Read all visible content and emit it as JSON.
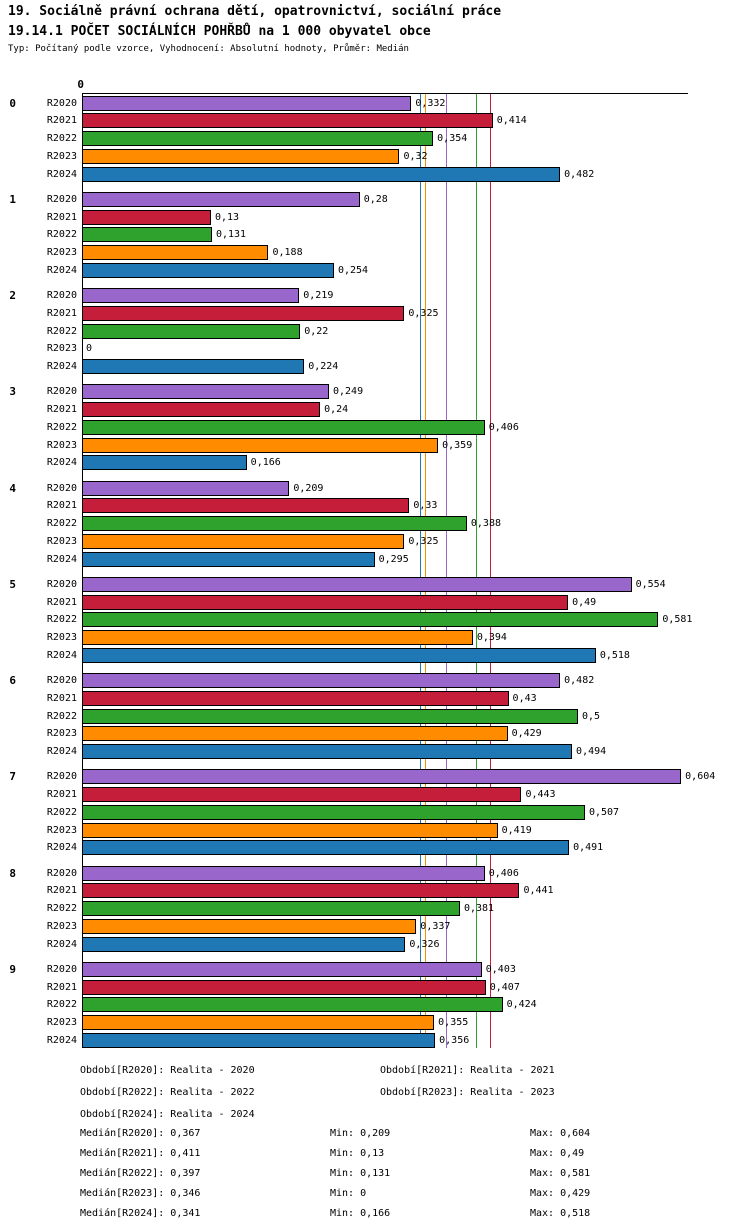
{
  "header": {
    "title_line1": "19. Sociálně právní ochrana dětí, opatrovnictví, sociální práce",
    "title_line2": "19.14.1 POČET SOCIÁLNÍCH POHŘBŮ na 1 000 obyvatel obce",
    "subtitle": "Typ: Počítaný podle vzorce, Vyhodnocení: Absolutní hodnoty, Průměr: Medián"
  },
  "chart_data": {
    "type": "bar",
    "orientation": "horizontal",
    "title": "19.14.1 POČET SOCIÁLNÍCH POHŘBŮ na 1 000 obyvatel obce",
    "xlabel": "",
    "ylabel": "",
    "xlim": [
      0,
      0.611
    ],
    "grid": false,
    "legend_position": "bottom",
    "x_axis": {
      "zero_label": "0"
    },
    "categories": [
      "0",
      "1",
      "2",
      "3",
      "4",
      "5",
      "6",
      "7",
      "8",
      "9"
    ],
    "series": [
      {
        "name": "R2020",
        "color": "#9966CC",
        "median": 0.367,
        "median_label": "0,367",
        "values": [
          0.332,
          0.28,
          0.219,
          0.249,
          0.209,
          0.554,
          0.482,
          0.604,
          0.406,
          0.403
        ],
        "value_labels": [
          "0,332",
          "0,28",
          "0,219",
          "0,249",
          "0,209",
          "0,554",
          "0,482",
          "0,604",
          "0,406",
          "0,403"
        ]
      },
      {
        "name": "R2021",
        "color": "#C41E3A",
        "median": 0.411,
        "median_label": "0,411",
        "values": [
          0.414,
          0.13,
          0.325,
          0.24,
          0.33,
          0.49,
          0.43,
          0.443,
          0.441,
          0.407
        ],
        "value_labels": [
          "0,414",
          "0,13",
          "0,325",
          "0,24",
          "0,33",
          "0,49",
          "0,43",
          "0,443",
          "0,441",
          "0,407"
        ]
      },
      {
        "name": "R2022",
        "color": "#2FA12D",
        "median": 0.397,
        "median_label": "0,397",
        "values": [
          0.354,
          0.131,
          0.22,
          0.406,
          0.388,
          0.581,
          0.5,
          0.507,
          0.381,
          0.424
        ],
        "value_labels": [
          "0,354",
          "0,131",
          "0,22",
          "0,406",
          "0,388",
          "0,581",
          "0,5",
          "0,507",
          "0,381",
          "0,424"
        ]
      },
      {
        "name": "R2023",
        "color": "#FF8C00",
        "median": 0.346,
        "median_label": "0,346",
        "values": [
          0.32,
          0.188,
          0,
          0.359,
          0.325,
          0.394,
          0.429,
          0.419,
          0.337,
          0.355
        ],
        "value_labels": [
          "0,32",
          "0,188",
          "0",
          "0,359",
          "0,325",
          "0,394",
          "0,429",
          "0,419",
          "0,337",
          "0,355"
        ]
      },
      {
        "name": "R2024",
        "color": "#1F77B4",
        "median": 0.341,
        "median_label": "0,341",
        "values": [
          0.482,
          0.254,
          0.224,
          0.166,
          0.295,
          0.518,
          0.494,
          0.491,
          0.326,
          0.356
        ],
        "value_labels": [
          "0,482",
          "0,254",
          "0,224",
          "0,166",
          "0,295",
          "0,518",
          "0,494",
          "0,491",
          "0,326",
          "0,356"
        ]
      }
    ]
  },
  "legend": {
    "rows": [
      [
        "Období[R2020]: Realita - 2020",
        "Období[R2021]: Realita - 2021"
      ],
      [
        "Období[R2022]: Realita - 2022",
        "Období[R2023]: Realita - 2023"
      ],
      [
        "Období[R2024]: Realita - 2024"
      ]
    ]
  },
  "stats": {
    "rows": [
      {
        "median": "Medián[R2020]: 0,367",
        "min": "Min: 0,209",
        "max": "Max: 0,604"
      },
      {
        "median": "Medián[R2021]: 0,411",
        "min": "Min: 0,13",
        "max": "Max: 0,49"
      },
      {
        "median": "Medián[R2022]: 0,397",
        "min": "Min: 0,131",
        "max": "Max: 0,581"
      },
      {
        "median": "Medián[R2023]: 0,346",
        "min": "Min: 0",
        "max": "Max: 0,429"
      },
      {
        "median": "Medián[R2024]: 0,341",
        "min": "Min: 0,166",
        "max": "Max: 0,518"
      }
    ]
  }
}
